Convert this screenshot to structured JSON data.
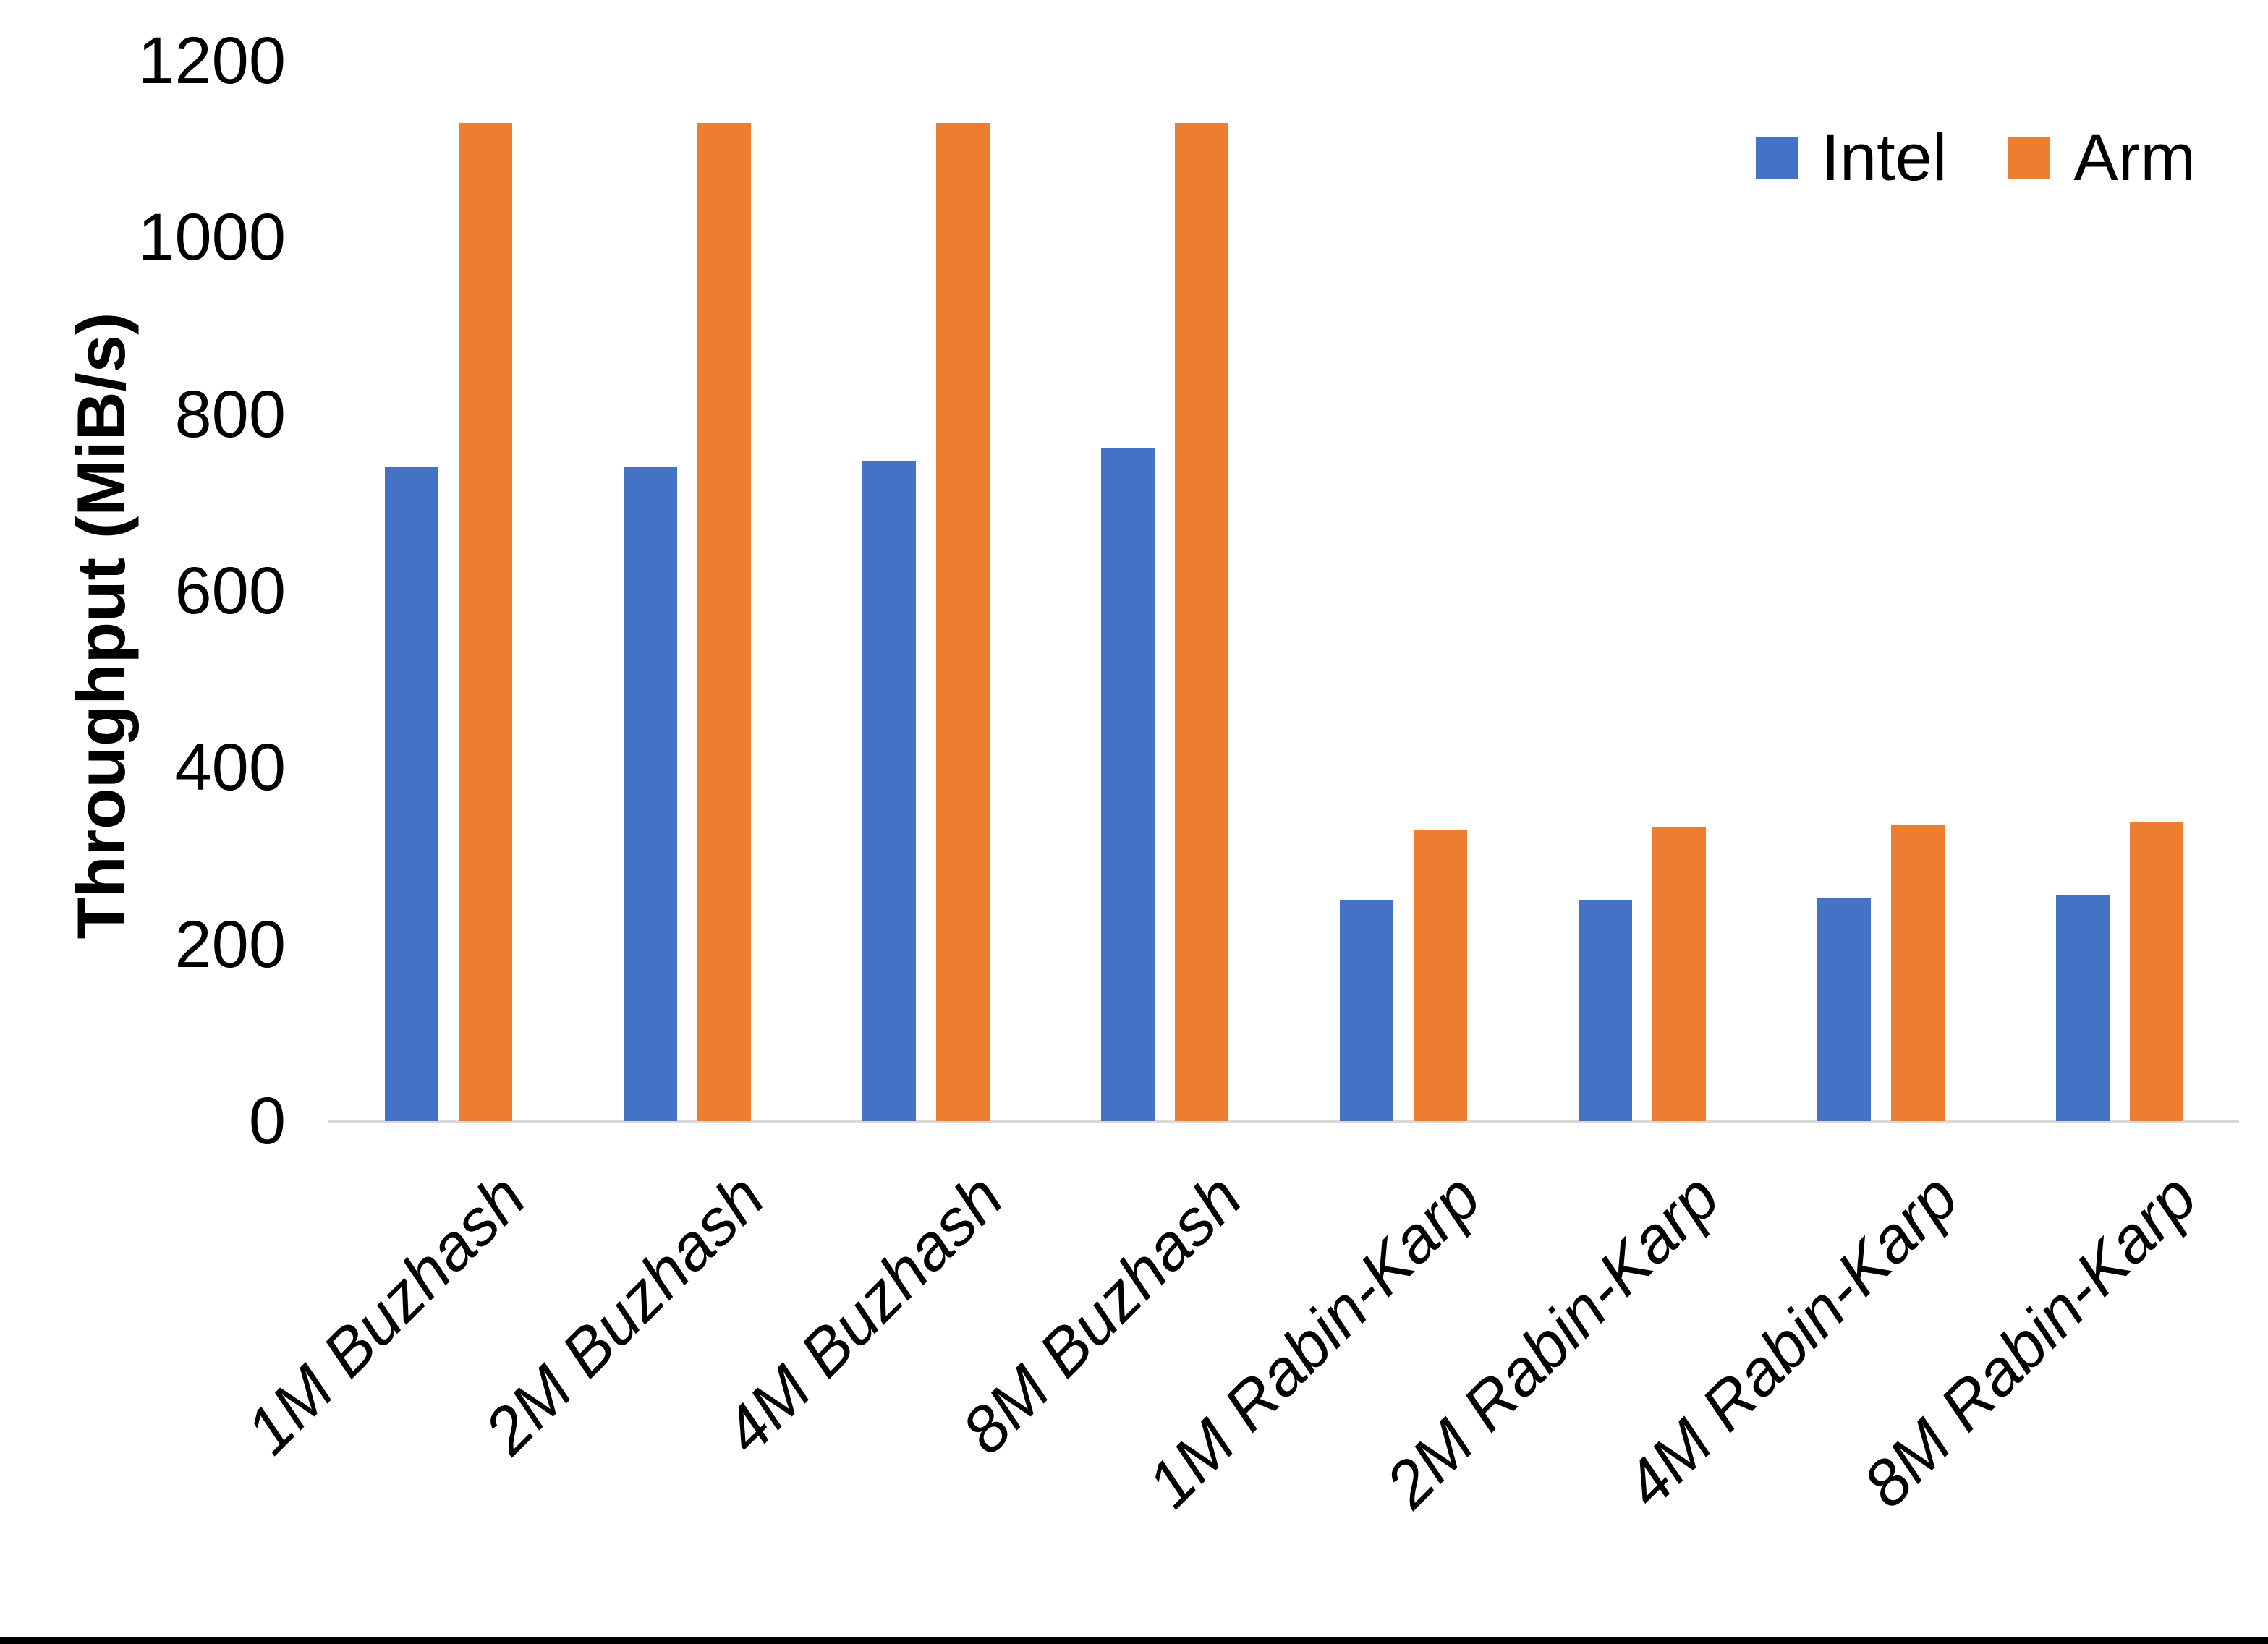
{
  "chart_data": {
    "type": "bar",
    "title": "",
    "xlabel": "",
    "ylabel": "Throughput (MiB/s)",
    "ylim": [
      0,
      1200
    ],
    "yticks": [
      1200,
      1000,
      800,
      600,
      400,
      200,
      0
    ],
    "grid": false,
    "legend_position": "top-right",
    "categories": [
      "1M Buzhash",
      "2M Buzhash",
      "4M Buzhash",
      "8M Buzhash",
      "1M Rabin-Karp",
      "2M Rabin-Karp",
      "4M Rabin-Karp",
      "8M Rabin-Karp"
    ],
    "series": [
      {
        "name": "Intel",
        "color": "#4472C4",
        "values": [
          740,
          740,
          747,
          762,
          250,
          250,
          253,
          255
        ]
      },
      {
        "name": "Arm",
        "color": "#ED7D31",
        "values": [
          1130,
          1130,
          1130,
          1130,
          330,
          332,
          335,
          338
        ]
      }
    ],
    "axis_line_color": "#d9d9d9",
    "text_color": "#000000"
  }
}
